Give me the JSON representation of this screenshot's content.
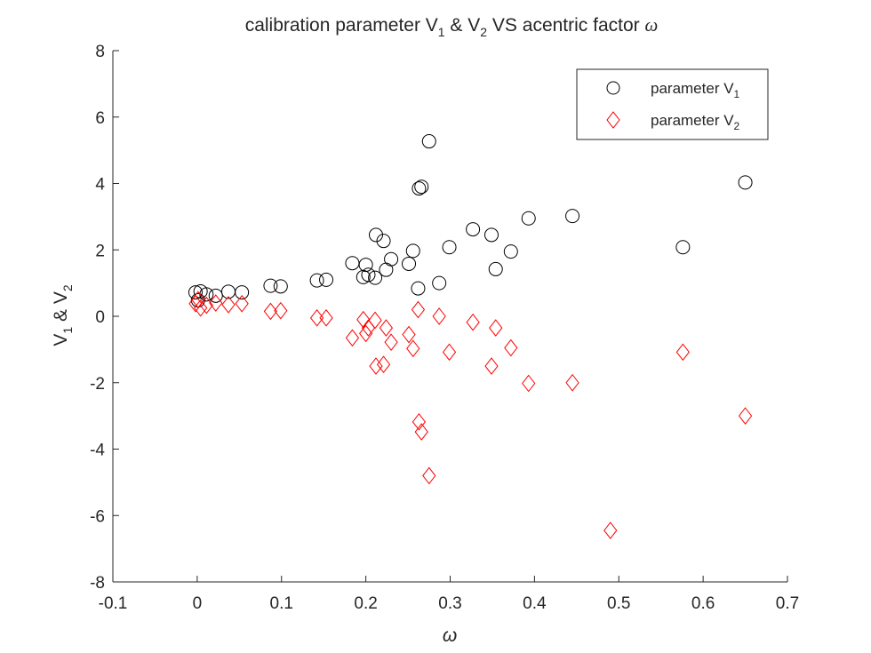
{
  "chart_data": {
    "type": "scatter",
    "title": {
      "main": "calibration parameter V",
      "sub1": "1",
      "mid": " & V",
      "sub2": "2",
      "tail": " VS acentric factor ",
      "symbol": "ω"
    },
    "xlabel": "ω",
    "ylabel": {
      "a": "V",
      "sub1": "1",
      "mid": " & V",
      "sub2": "2"
    },
    "xlim": [
      -0.1,
      0.7
    ],
    "ylim": [
      -8,
      8
    ],
    "xticks": [
      -0.1,
      0,
      0.1,
      0.2,
      0.3,
      0.4,
      0.5,
      0.6,
      0.7
    ],
    "xtick_labels": [
      "-0.1",
      "0",
      "0.1",
      "0.2",
      "0.3",
      "0.4",
      "0.5",
      "0.6",
      "0.7"
    ],
    "yticks": [
      -8,
      -6,
      -4,
      -2,
      0,
      2,
      4,
      6,
      8
    ],
    "ytick_labels": [
      "-8",
      "-6",
      "-4",
      "-2",
      "0",
      "2",
      "4",
      "6",
      "8"
    ],
    "grid": false,
    "legend": {
      "placement": "top-right"
    },
    "series": [
      {
        "name": "parameter V",
        "name_sub": "1",
        "marker": "circle",
        "color": "#000000",
        "points": [
          [
            -0.002,
            0.72
          ],
          [
            0.001,
            0.48
          ],
          [
            0.004,
            0.75
          ],
          [
            0.011,
            0.66
          ],
          [
            0.022,
            0.62
          ],
          [
            0.037,
            0.74
          ],
          [
            0.053,
            0.72
          ],
          [
            0.087,
            0.92
          ],
          [
            0.099,
            0.9
          ],
          [
            0.142,
            1.08
          ],
          [
            0.153,
            1.1
          ],
          [
            0.184,
            1.6
          ],
          [
            0.197,
            1.18
          ],
          [
            0.2,
            1.55
          ],
          [
            0.203,
            1.25
          ],
          [
            0.211,
            1.16
          ],
          [
            0.212,
            2.45
          ],
          [
            0.221,
            2.27
          ],
          [
            0.224,
            1.4
          ],
          [
            0.23,
            1.72
          ],
          [
            0.251,
            1.58
          ],
          [
            0.256,
            1.97
          ],
          [
            0.262,
            0.84
          ],
          [
            0.263,
            3.85
          ],
          [
            0.266,
            3.9
          ],
          [
            0.275,
            5.27
          ],
          [
            0.287,
            1.0
          ],
          [
            0.299,
            2.08
          ],
          [
            0.327,
            2.62
          ],
          [
            0.349,
            2.45
          ],
          [
            0.354,
            1.42
          ],
          [
            0.372,
            1.95
          ],
          [
            0.393,
            2.95
          ],
          [
            0.445,
            3.02
          ],
          [
            0.576,
            2.08
          ],
          [
            0.65,
            4.03
          ]
        ]
      },
      {
        "name": "parameter V",
        "name_sub": "2",
        "marker": "diamond",
        "color": "#ff0000",
        "points": [
          [
            -0.002,
            0.38
          ],
          [
            0.001,
            0.5
          ],
          [
            0.004,
            0.25
          ],
          [
            0.011,
            0.33
          ],
          [
            0.022,
            0.4
          ],
          [
            0.037,
            0.35
          ],
          [
            0.053,
            0.38
          ],
          [
            0.087,
            0.15
          ],
          [
            0.099,
            0.17
          ],
          [
            0.142,
            -0.05
          ],
          [
            0.153,
            -0.05
          ],
          [
            0.184,
            -0.65
          ],
          [
            0.197,
            -0.1
          ],
          [
            0.2,
            -0.52
          ],
          [
            0.203,
            -0.35
          ],
          [
            0.211,
            -0.12
          ],
          [
            0.212,
            -1.5
          ],
          [
            0.221,
            -1.45
          ],
          [
            0.224,
            -0.35
          ],
          [
            0.23,
            -0.78
          ],
          [
            0.251,
            -0.55
          ],
          [
            0.256,
            -0.97
          ],
          [
            0.262,
            0.2
          ],
          [
            0.263,
            -3.18
          ],
          [
            0.266,
            -3.48
          ],
          [
            0.275,
            -4.8
          ],
          [
            0.287,
            0.0
          ],
          [
            0.299,
            -1.08
          ],
          [
            0.327,
            -0.18
          ],
          [
            0.349,
            -1.5
          ],
          [
            0.354,
            -0.35
          ],
          [
            0.372,
            -0.95
          ],
          [
            0.393,
            -2.02
          ],
          [
            0.445,
            -2.0
          ],
          [
            0.49,
            -6.45
          ],
          [
            0.576,
            -1.08
          ],
          [
            0.65,
            -3.0
          ]
        ]
      }
    ]
  }
}
